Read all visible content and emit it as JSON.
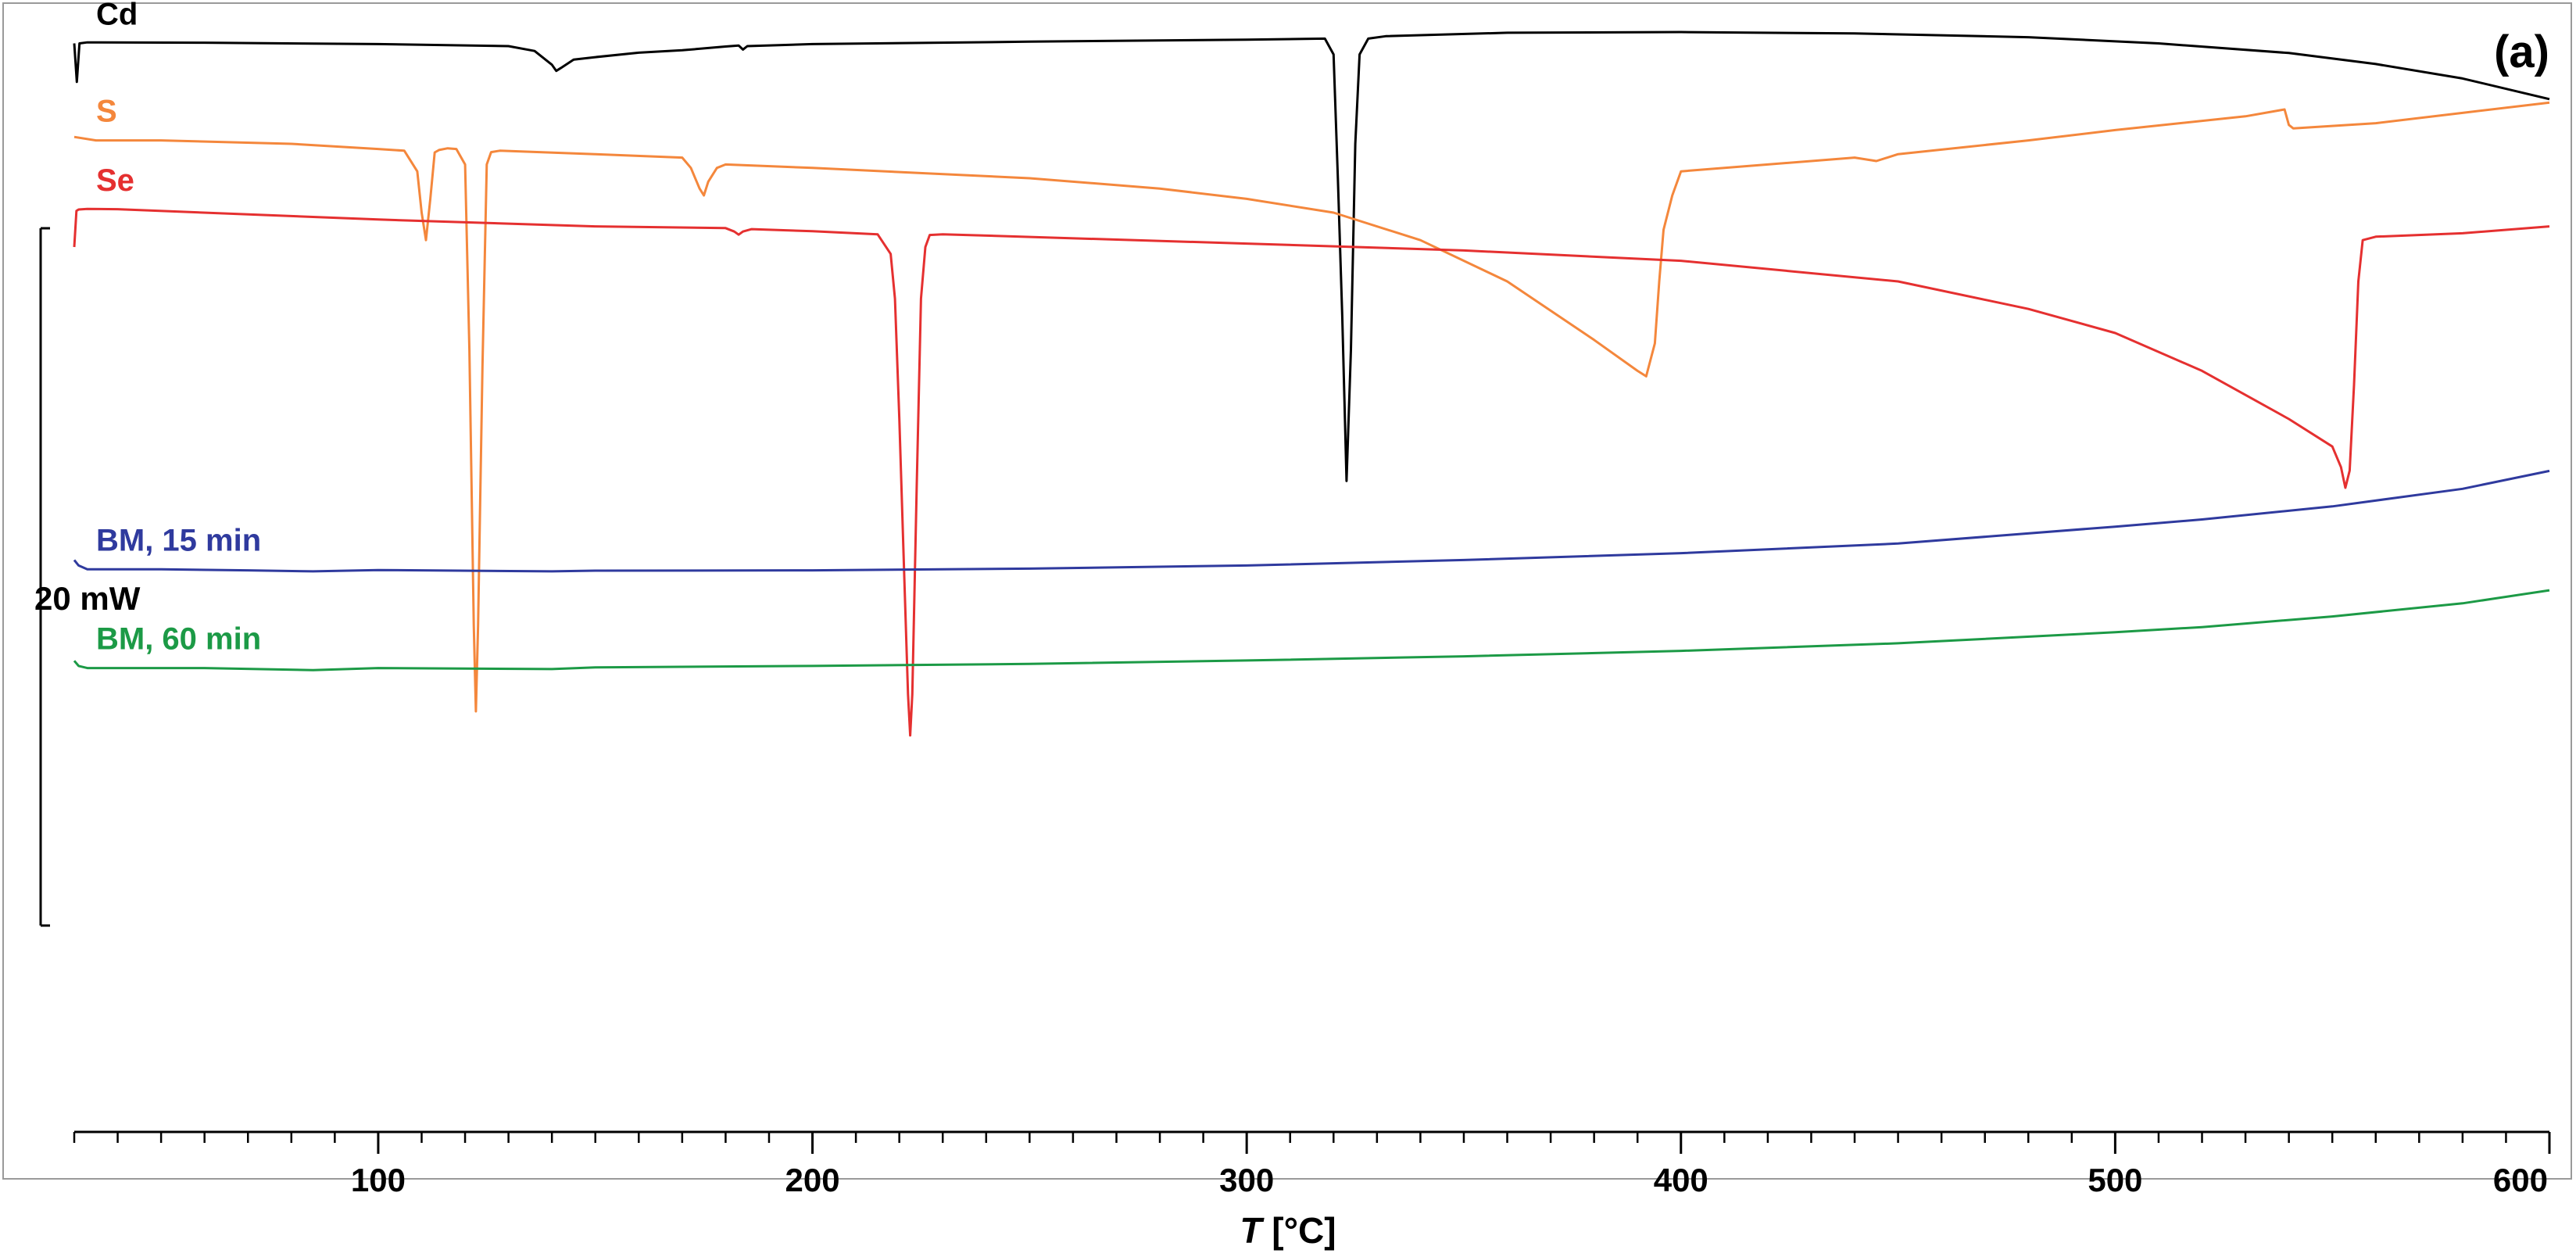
{
  "chart_data": {
    "type": "line",
    "panel_label": "(a)",
    "xlabel_italic": "T",
    "xlabel_unit": " [°C]",
    "xlim": [
      30,
      600
    ],
    "x_ticks": [
      100,
      200,
      300,
      400,
      500,
      600
    ],
    "x_minor_step": 10,
    "scale_bar_label": "20 mW",
    "grid": false,
    "series": [
      {
        "name": "Cd",
        "color": "#000000",
        "points": [
          [
            30,
            0.8
          ],
          [
            30.6,
            12
          ],
          [
            31.2,
            0.8
          ],
          [
            33,
            0.5
          ],
          [
            60,
            0.6
          ],
          [
            100,
            1.0
          ],
          [
            130,
            1.6
          ],
          [
            136,
            3.0
          ],
          [
            140,
            7.0
          ],
          [
            141,
            8.8
          ],
          [
            142,
            8.0
          ],
          [
            145,
            5.5
          ],
          [
            150,
            4.8
          ],
          [
            160,
            3.5
          ],
          [
            170,
            2.8
          ],
          [
            180,
            1.7
          ],
          [
            183,
            1.4
          ],
          [
            184,
            2.6
          ],
          [
            185,
            1.6
          ],
          [
            200,
            1.0
          ],
          [
            250,
            0.3
          ],
          [
            300,
            -0.3
          ],
          [
            318,
            -0.6
          ],
          [
            320,
            4
          ],
          [
            321,
            40
          ],
          [
            322,
            80
          ],
          [
            323,
            128
          ],
          [
            324,
            90
          ],
          [
            325,
            30
          ],
          [
            326,
            4
          ],
          [
            328,
            -0.6
          ],
          [
            332,
            -1.3
          ],
          [
            360,
            -2.3
          ],
          [
            400,
            -2.5
          ],
          [
            440,
            -2.1
          ],
          [
            480,
            -1.0
          ],
          [
            510,
            0.8
          ],
          [
            540,
            3.6
          ],
          [
            560,
            6.8
          ],
          [
            580,
            11.0
          ],
          [
            600,
            17.0
          ]
        ]
      },
      {
        "name": "S",
        "color": "#f4873c",
        "points": [
          [
            30,
            28.0
          ],
          [
            35,
            29.0
          ],
          [
            50,
            29.0
          ],
          [
            80,
            30.0
          ],
          [
            100,
            31.5
          ],
          [
            106,
            32.0
          ],
          [
            109,
            38
          ],
          [
            110,
            50
          ],
          [
            111,
            58
          ],
          [
            112,
            46
          ],
          [
            113,
            32.5
          ],
          [
            114,
            31.8
          ],
          [
            116,
            31.3
          ],
          [
            118,
            31.5
          ],
          [
            120,
            36
          ],
          [
            121,
            90
          ],
          [
            122,
            170
          ],
          [
            122.5,
            195
          ],
          [
            123,
            170
          ],
          [
            124,
            95
          ],
          [
            125,
            36
          ],
          [
            126,
            32.4
          ],
          [
            128,
            32.0
          ],
          [
            150,
            33.0
          ],
          [
            170,
            34.0
          ],
          [
            172,
            37
          ],
          [
            174,
            43
          ],
          [
            175,
            45
          ],
          [
            176,
            41
          ],
          [
            178,
            37.0
          ],
          [
            180,
            36.0
          ],
          [
            200,
            37.0
          ],
          [
            250,
            40.0
          ],
          [
            280,
            43.0
          ],
          [
            300,
            46.0
          ],
          [
            320,
            50.0
          ],
          [
            340,
            58.0
          ],
          [
            360,
            70.0
          ],
          [
            380,
            87.0
          ],
          [
            390,
            96.0
          ],
          [
            392,
            97.6
          ],
          [
            394,
            88
          ],
          [
            395,
            70
          ],
          [
            396,
            55
          ],
          [
            398,
            45
          ],
          [
            400,
            38.0
          ],
          [
            420,
            36.0
          ],
          [
            440,
            34.0
          ],
          [
            445,
            35.0
          ],
          [
            450,
            33.0
          ],
          [
            480,
            29.0
          ],
          [
            500,
            26.0
          ],
          [
            530,
            22.0
          ],
          [
            539,
            20.0
          ],
          [
            540,
            24.5
          ],
          [
            541,
            25.5
          ],
          [
            560,
            24.0
          ],
          [
            580,
            21.0
          ],
          [
            600,
            18.0
          ]
        ]
      },
      {
        "name": "Se",
        "color": "#e53030",
        "points": [
          [
            30,
            60
          ],
          [
            30.5,
            49.5
          ],
          [
            31,
            49.1
          ],
          [
            33,
            48.9
          ],
          [
            40,
            49.0
          ],
          [
            100,
            52.0
          ],
          [
            150,
            54.0
          ],
          [
            180,
            54.5
          ],
          [
            182,
            55.5
          ],
          [
            183,
            56.4
          ],
          [
            184,
            55.5
          ],
          [
            186,
            54.8
          ],
          [
            200,
            55.4
          ],
          [
            215,
            56.3
          ],
          [
            218,
            62
          ],
          [
            219,
            75
          ],
          [
            220,
            110
          ],
          [
            221,
            150
          ],
          [
            222,
            190
          ],
          [
            222.5,
            202
          ],
          [
            223,
            190
          ],
          [
            224,
            130
          ],
          [
            225,
            75
          ],
          [
            226,
            60
          ],
          [
            227,
            56.5
          ],
          [
            230,
            56.3
          ],
          [
            300,
            59.0
          ],
          [
            350,
            61.0
          ],
          [
            400,
            64.0
          ],
          [
            450,
            70.0
          ],
          [
            480,
            78.0
          ],
          [
            500,
            85.0
          ],
          [
            520,
            96.0
          ],
          [
            540,
            110.0
          ],
          [
            550,
            118.0
          ],
          [
            552,
            124
          ],
          [
            553,
            130
          ],
          [
            554,
            125
          ],
          [
            555,
            100
          ],
          [
            556,
            70
          ],
          [
            557,
            58
          ],
          [
            560,
            57.0
          ],
          [
            580,
            56.0
          ],
          [
            600,
            54.0
          ]
        ]
      },
      {
        "name": "BM, 15 min",
        "color": "#2f3a9e",
        "points": [
          [
            30,
            151
          ],
          [
            31,
            152.6
          ],
          [
            33,
            153.7
          ],
          [
            50,
            153.7
          ],
          [
            70,
            154.0
          ],
          [
            85,
            154.3
          ],
          [
            100,
            153.9
          ],
          [
            140,
            154.3
          ],
          [
            150,
            154.1
          ],
          [
            200,
            154.0
          ],
          [
            250,
            153.5
          ],
          [
            300,
            152.6
          ],
          [
            350,
            151.0
          ],
          [
            400,
            149.0
          ],
          [
            450,
            146.2
          ],
          [
            500,
            141.3
          ],
          [
            520,
            139.2
          ],
          [
            550,
            135.4
          ],
          [
            580,
            130.3
          ],
          [
            600,
            125.1
          ]
        ]
      },
      {
        "name": "BM, 60 min",
        "color": "#1c9a46",
        "points": [
          [
            30,
            180.3
          ],
          [
            31,
            181.8
          ],
          [
            33,
            182.4
          ],
          [
            60,
            182.4
          ],
          [
            85,
            183.0
          ],
          [
            100,
            182.4
          ],
          [
            140,
            182.7
          ],
          [
            150,
            182.2
          ],
          [
            200,
            181.8
          ],
          [
            250,
            181.2
          ],
          [
            300,
            180.2
          ],
          [
            350,
            179.0
          ],
          [
            400,
            177.4
          ],
          [
            450,
            175.2
          ],
          [
            500,
            172.0
          ],
          [
            520,
            170.5
          ],
          [
            550,
            167.4
          ],
          [
            580,
            163.6
          ],
          [
            600,
            159.8
          ]
        ]
      }
    ]
  }
}
